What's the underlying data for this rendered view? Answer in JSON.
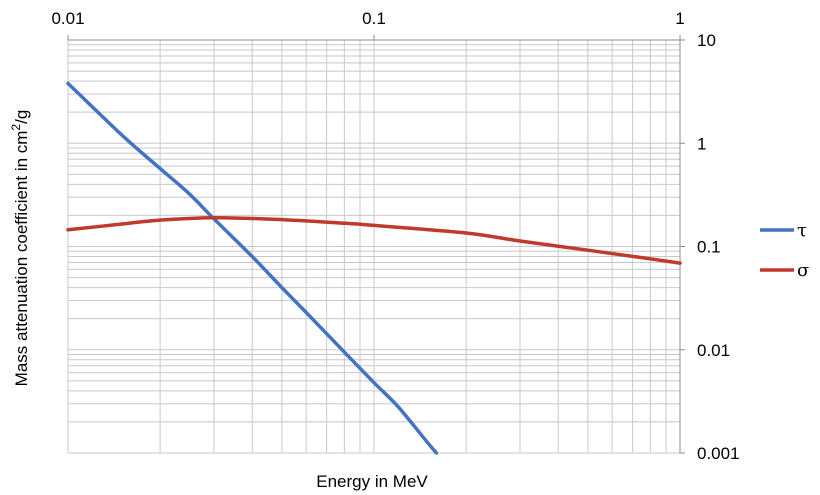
{
  "chart_data": {
    "type": "line",
    "title": "",
    "xlabel": "Energy in MeV",
    "ylabel_main": "Mass attenuation coefficient in cm",
    "ylabel_sup": "2",
    "ylabel_tail": "/g",
    "x_scale": "log",
    "y_scale": "log",
    "xlim": [
      0.01,
      1
    ],
    "ylim": [
      0.001,
      10
    ],
    "x_axis_position": "top",
    "y_axis_position": "right",
    "grid": true,
    "legend_position": "right",
    "x_ticks": [
      {
        "value": 0.01,
        "label": "0.01"
      },
      {
        "value": 0.1,
        "label": "0.1"
      },
      {
        "value": 1,
        "label": "1"
      }
    ],
    "y_ticks": [
      {
        "value": 10,
        "label": "10"
      },
      {
        "value": 1,
        "label": "1"
      },
      {
        "value": 0.1,
        "label": "0.1"
      },
      {
        "value": 0.01,
        "label": "0.01"
      },
      {
        "value": 0.001,
        "label": "0.001"
      }
    ],
    "series": [
      {
        "name": "τ",
        "color": "#4472c4",
        "points": [
          [
            0.01,
            3.8
          ],
          [
            0.015,
            1.2
          ],
          [
            0.02,
            0.57
          ],
          [
            0.025,
            0.32
          ],
          [
            0.03,
            0.185
          ],
          [
            0.04,
            0.08
          ],
          [
            0.05,
            0.04
          ],
          [
            0.06,
            0.023
          ],
          [
            0.08,
            0.0095
          ],
          [
            0.1,
            0.0048
          ],
          [
            0.12,
            0.0028
          ],
          [
            0.15,
            0.00125
          ],
          [
            0.16,
            0.001
          ]
        ]
      },
      {
        "name": "σ",
        "color": "#c0392b",
        "points": [
          [
            0.01,
            0.145
          ],
          [
            0.015,
            0.165
          ],
          [
            0.02,
            0.18
          ],
          [
            0.03,
            0.19
          ],
          [
            0.05,
            0.182
          ],
          [
            0.08,
            0.168
          ],
          [
            0.1,
            0.16
          ],
          [
            0.2,
            0.135
          ],
          [
            0.3,
            0.113
          ],
          [
            0.5,
            0.092
          ],
          [
            0.8,
            0.076
          ],
          [
            1,
            0.069
          ]
        ]
      }
    ]
  }
}
